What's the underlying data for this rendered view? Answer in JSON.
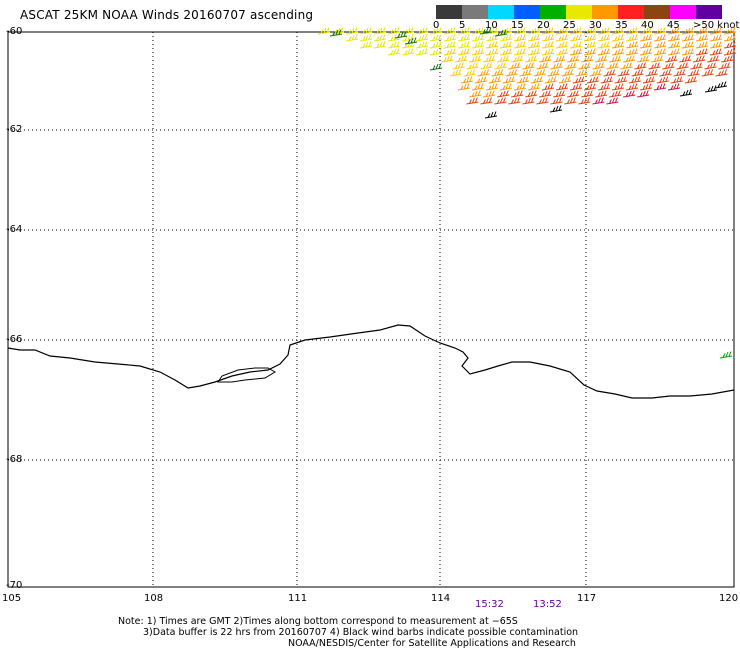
{
  "title": "ASCAT 25KM NOAA Winds 20160707 ascending",
  "colorbar": {
    "labels": [
      "0",
      "5",
      "10",
      "15",
      "20",
      "25",
      "30",
      "35",
      "40",
      "45",
      ">50 knots"
    ],
    "colors": [
      "#3a3a3a",
      "#7a7a7a",
      "#00d8ff",
      "#0060ff",
      "#00b000",
      "#e8e800",
      "#ff9900",
      "#ff2020",
      "#8b4513",
      "#ff00ff",
      "#6000a0"
    ]
  },
  "axes": {
    "y_labels": [
      "-60",
      "-62",
      "-64",
      "-66",
      "-68",
      "-70"
    ],
    "x_labels": [
      "105",
      "108",
      "111",
      "114",
      "117",
      "120"
    ]
  },
  "pass_times": [
    "15:32",
    "13:52"
  ],
  "notes": {
    "line1": "Note: 1) Times are GMT 2)Times along bottom correspond to measurement at −65S",
    "line2": "3)Data buffer is 22 hrs from 20160707 4) Black wind barbs indicate possible contamination",
    "line3": "NOAA/NESDIS/Center for Satellite Applications and Research"
  }
}
